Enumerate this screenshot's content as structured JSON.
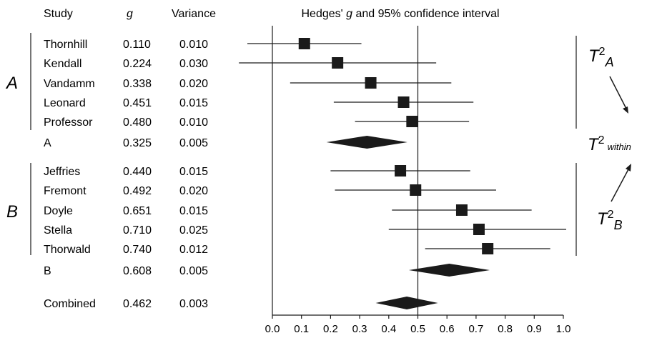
{
  "headers": {
    "study": "Study",
    "g": "g",
    "variance": "Variance",
    "plot_title_prefix": "Hedges' ",
    "plot_title_g": "g",
    "plot_title_suffix": " and 95% confidence interval"
  },
  "groups": [
    {
      "label": "A"
    },
    {
      "label": "B"
    }
  ],
  "annotations": {
    "tau_a": {
      "base": "T",
      "exp": "2",
      "sub": "A"
    },
    "tau_b": {
      "base": "T",
      "exp": "2",
      "sub": "B"
    },
    "tau_within": {
      "base": "T",
      "exp": "2",
      "sub": "within"
    }
  },
  "chart_data": {
    "type": "forest",
    "title": "Hedges' g and 95% confidence interval",
    "columns": [
      "Study",
      "g",
      "Variance"
    ],
    "xlim": [
      0.0,
      1.0
    ],
    "xticks": [
      "0.0",
      "0.1",
      "0.2",
      "0.3",
      "0.4",
      "0.5",
      "0.6",
      "0.7",
      "0.8",
      "0.9",
      "1.0"
    ],
    "reference_line": 0.5,
    "rows": [
      {
        "study": "Thornhill",
        "g": "0.110",
        "variance": "0.010",
        "group": "A",
        "kind": "study",
        "lo": -0.086,
        "hi": 0.306
      },
      {
        "study": "Kendall",
        "g": "0.224",
        "variance": "0.030",
        "group": "A",
        "kind": "study",
        "lo": -0.115,
        "hi": 0.563
      },
      {
        "study": "Vandamm",
        "g": "0.338",
        "variance": "0.020",
        "group": "A",
        "kind": "study",
        "lo": 0.061,
        "hi": 0.615
      },
      {
        "study": "Leonard",
        "g": "0.451",
        "variance": "0.015",
        "group": "A",
        "kind": "study",
        "lo": 0.211,
        "hi": 0.691
      },
      {
        "study": "Professor",
        "g": "0.480",
        "variance": "0.010",
        "group": "A",
        "kind": "study",
        "lo": 0.284,
        "hi": 0.676
      },
      {
        "study": "A",
        "g": "0.325",
        "variance": "0.005",
        "group": "A",
        "kind": "summary",
        "lo": 0.186,
        "hi": 0.464
      },
      {
        "study": "Jeffries",
        "g": "0.440",
        "variance": "0.015",
        "group": "B",
        "kind": "study",
        "lo": 0.2,
        "hi": 0.68
      },
      {
        "study": "Fremont",
        "g": "0.492",
        "variance": "0.020",
        "group": "B",
        "kind": "study",
        "lo": 0.215,
        "hi": 0.769
      },
      {
        "study": "Doyle",
        "g": "0.651",
        "variance": "0.015",
        "group": "B",
        "kind": "study",
        "lo": 0.411,
        "hi": 0.891
      },
      {
        "study": "Stella",
        "g": "0.710",
        "variance": "0.025",
        "group": "B",
        "kind": "study",
        "lo": 0.4,
        "hi": 1.02
      },
      {
        "study": "Thorwald",
        "g": "0.740",
        "variance": "0.012",
        "group": "B",
        "kind": "study",
        "lo": 0.525,
        "hi": 0.955
      },
      {
        "study": "B",
        "g": "0.608",
        "variance": "0.005",
        "group": "B",
        "kind": "summary",
        "lo": 0.469,
        "hi": 0.747
      },
      {
        "study": "Combined",
        "g": "0.462",
        "variance": "0.003",
        "group": "",
        "kind": "summary",
        "lo": 0.355,
        "hi": 0.569
      }
    ]
  }
}
